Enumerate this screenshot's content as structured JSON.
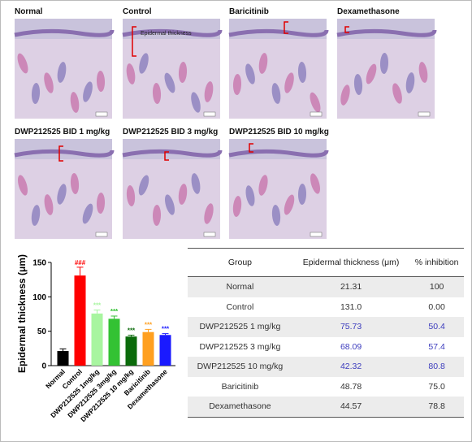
{
  "panels": [
    {
      "label": "Normal"
    },
    {
      "label": "Control",
      "annotation": "Epidermal thickness"
    },
    {
      "label": "Baricitinib"
    },
    {
      "label": "Dexamethasone"
    },
    {
      "label": "DWP212525 BID 1 mg/kg"
    },
    {
      "label": "DWP212525 BID 3 mg/kg"
    },
    {
      "label": "DWP212525 BID 10 mg/kg"
    }
  ],
  "chart_data": {
    "type": "bar",
    "y_label": "Epidermal thickness (μm)",
    "categories": [
      "Normal",
      "Control",
      "DWP212525 1mg/kg",
      "DWP212525 3mg/kg",
      "DWP212525 10 mg/kg",
      "Baricitinib",
      "Dexamethasone"
    ],
    "values": [
      21.31,
      131.0,
      75.73,
      68.09,
      42.32,
      48.78,
      44.57
    ],
    "errors": [
      3,
      12,
      5,
      4,
      2,
      4,
      2
    ],
    "colors": [
      "#000000",
      "#ff0000",
      "#a8f5a0",
      "#33c233",
      "#0b6b0b",
      "#ffa020",
      "#1a1aff"
    ],
    "annotations": [
      null,
      "###",
      "***",
      "***",
      "***",
      "***",
      "***"
    ],
    "ylim": [
      0,
      150
    ],
    "yticks": [
      0,
      50,
      100,
      150
    ]
  },
  "table": {
    "header": [
      "Group",
      "Epidermal thickness (μm)",
      "% inhibition"
    ],
    "rows": [
      [
        "Normal",
        "21.31",
        "100"
      ],
      [
        "Control",
        "131.0",
        "0.00"
      ],
      [
        "DWP212525 1 mg/kg",
        "75.73",
        "50.4"
      ],
      [
        "DWP212525 3 mg/kg",
        "68.09",
        "57.4"
      ],
      [
        "DWP212525 10 mg/kg",
        "42.32",
        "80.8"
      ],
      [
        "Baricitinib",
        "48.78",
        "75.0"
      ],
      [
        "Dexamethasone",
        "44.57",
        "78.8"
      ]
    ]
  }
}
